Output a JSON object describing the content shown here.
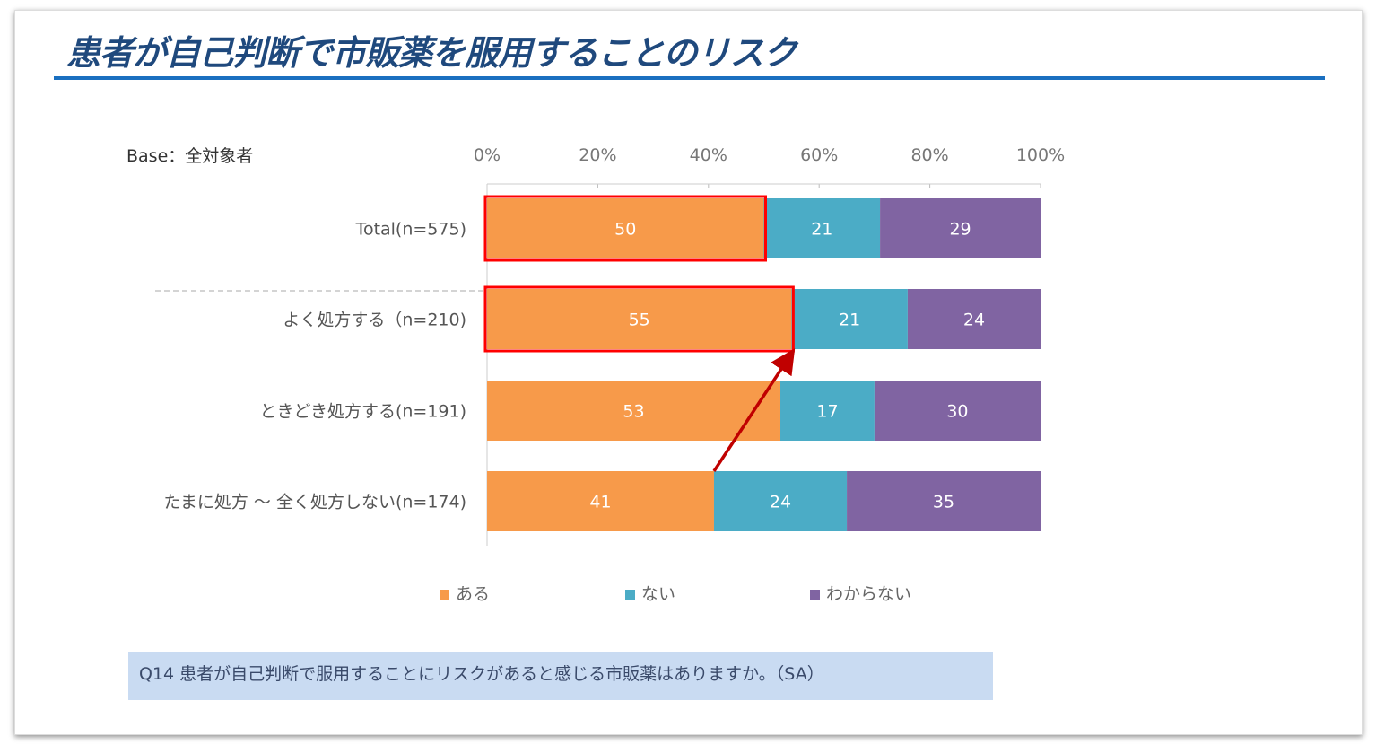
{
  "title": "患者が自己判断で市販薬を服用することのリスク",
  "question": "Q14  患者が自己判断で服用することにリスクがあると感じる市販薬はありますか。（SA）",
  "chart_data": {
    "type": "bar",
    "orientation": "horizontal",
    "stacked": "percent",
    "base_label": "Base：全対象者",
    "categories": [
      "Total(n=575)",
      "よく処方する（n=210)",
      "ときどき処方する(n=191)",
      "たまに処方 ～ 全く処方しない(n=174)"
    ],
    "series": [
      {
        "name": "ある",
        "color": "#f79a4a",
        "values": [
          50,
          55,
          53,
          41
        ]
      },
      {
        "name": "ない",
        "color": "#4bacc6",
        "values": [
          21,
          21,
          17,
          24
        ]
      },
      {
        "name": "わからない",
        "color": "#8064a2",
        "values": [
          29,
          24,
          30,
          35
        ]
      }
    ],
    "xlim": [
      0,
      100
    ],
    "xticks": [
      "0%",
      "20%",
      "40%",
      "60%",
      "80%",
      "100%"
    ],
    "legend_position": "bottom",
    "highlight_color": "#ff0000",
    "highlighted": [
      {
        "category": 0,
        "series": 0
      },
      {
        "category": 1,
        "series": 0
      }
    ],
    "annotation_arrow": {
      "from_category": 3,
      "to_category": 1,
      "color": "#c00000"
    }
  }
}
